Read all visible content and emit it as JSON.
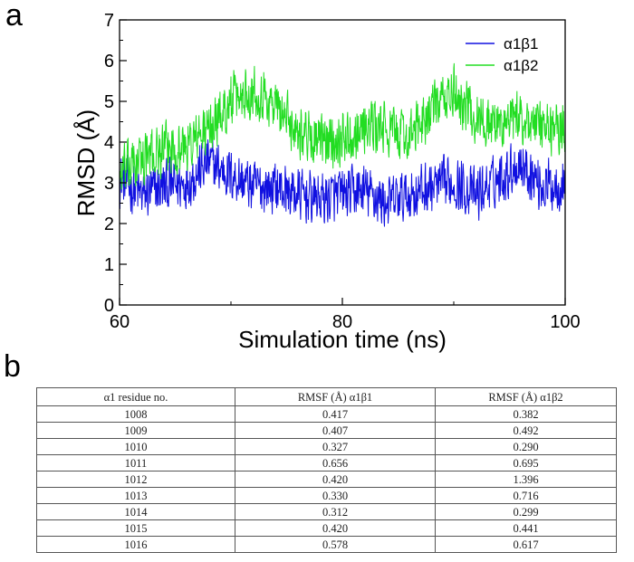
{
  "panels": {
    "a": "a",
    "b": "b"
  },
  "chart_data": {
    "type": "line",
    "title": "",
    "xlabel": "Simulation time (ns)",
    "ylabel": "RMSD (Å)",
    "xlim": [
      60,
      100
    ],
    "ylim": [
      0,
      7
    ],
    "xticks": [
      60,
      80,
      100
    ],
    "yticks": [
      0,
      1,
      2,
      3,
      4,
      5,
      6,
      7
    ],
    "grid": false,
    "legend_position": "top-right",
    "series": [
      {
        "name": "α1β1",
        "color": "#1010e0",
        "x": [
          60,
          62,
          64,
          66,
          68,
          70,
          72,
          74,
          76,
          78,
          80,
          82,
          84,
          86,
          88,
          90,
          92,
          94,
          96,
          98,
          100
        ],
        "y": [
          3.1,
          2.7,
          2.9,
          3.0,
          3.5,
          3.2,
          2.9,
          2.9,
          2.7,
          2.6,
          2.7,
          2.8,
          2.5,
          2.7,
          2.9,
          3.0,
          2.7,
          3.1,
          3.5,
          2.9,
          3.0
        ]
      },
      {
        "name": "α1β2",
        "color": "#22dd22",
        "x": [
          60,
          62,
          64,
          66,
          68,
          70,
          72,
          74,
          76,
          78,
          80,
          82,
          84,
          86,
          88,
          90,
          92,
          94,
          96,
          98,
          100
        ],
        "y": [
          3.2,
          3.6,
          3.8,
          3.9,
          4.3,
          5.0,
          5.3,
          4.9,
          4.3,
          4.0,
          4.1,
          4.4,
          4.3,
          4.1,
          4.8,
          5.2,
          4.6,
          4.4,
          4.6,
          4.3,
          4.4
        ]
      }
    ]
  },
  "table": {
    "headers": [
      "α1 residue no.",
      "RMSF (Å) α1β1",
      "RMSF (Å) α1β2"
    ],
    "rows": [
      [
        "1008",
        "0.417",
        "0.382"
      ],
      [
        "1009",
        "0.407",
        "0.492"
      ],
      [
        "1010",
        "0.327",
        "0.290"
      ],
      [
        "1011",
        "0.656",
        "0.695"
      ],
      [
        "1012",
        "0.420",
        "1.396"
      ],
      [
        "1013",
        "0.330",
        "0.716"
      ],
      [
        "1014",
        "0.312",
        "0.299"
      ],
      [
        "1015",
        "0.420",
        "0.441"
      ],
      [
        "1016",
        "0.578",
        "0.617"
      ]
    ]
  }
}
